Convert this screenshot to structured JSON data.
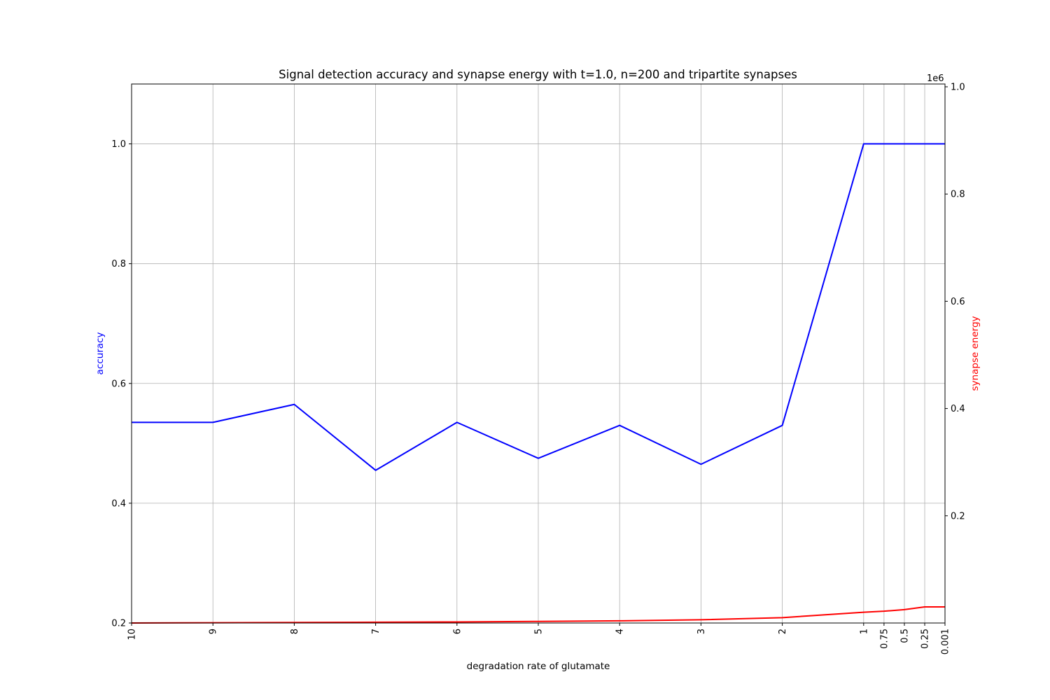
{
  "chart_data": {
    "type": "line",
    "title": "Signal detection accuracy and synapse energy with t=1.0, n=200 and tripartite synapses",
    "xlabel": "degradation rate of glutamate",
    "y_left_label": "accuracy",
    "y_right_label": "synapse energy",
    "y_right_offset_label": "1e6",
    "categories": [
      "10",
      "9",
      "8",
      "7",
      "6",
      "5",
      "4",
      "3",
      "2",
      "1",
      "0.75",
      "0.5",
      "0.25",
      "0.001"
    ],
    "x_values": [
      10,
      9,
      8,
      7,
      6,
      5,
      4,
      3,
      2,
      1,
      0.75,
      0.5,
      0.25,
      0.001
    ],
    "y_left_lim": [
      0.2,
      1.1
    ],
    "y_left_ticks": [
      0.2,
      0.4,
      0.6,
      0.8,
      1.0
    ],
    "y_left_tick_labels": [
      "0.2",
      "0.4",
      "0.6",
      "0.8",
      "1.0"
    ],
    "y_right_lim": [
      0.0,
      1.0
    ],
    "y_right_ticks": [
      0.2,
      0.4,
      0.6,
      0.8,
      1.0
    ],
    "y_right_tick_labels": [
      "0.2",
      "0.4",
      "0.6",
      "0.8",
      "1.0"
    ],
    "grid": true,
    "series": [
      {
        "axis": "left",
        "color": "#0000ff",
        "values": [
          0.535,
          0.535,
          0.565,
          0.455,
          0.535,
          0.475,
          0.53,
          0.465,
          0.53,
          1.0,
          1.0,
          1.0,
          1.0,
          1.0
        ]
      },
      {
        "axis": "right",
        "color": "#ff0000",
        "values": [
          0.0,
          0.0005,
          0.001,
          0.0015,
          0.002,
          0.003,
          0.004,
          0.006,
          0.01,
          0.02,
          0.022,
          0.025,
          0.03,
          0.03
        ]
      }
    ]
  }
}
